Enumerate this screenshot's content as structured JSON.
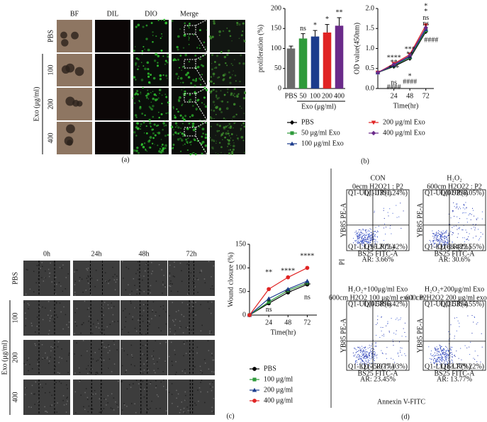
{
  "figure": {
    "panel_labels": [
      "(a)",
      "(b)",
      "(c)",
      "(d)"
    ]
  },
  "panel_a": {
    "columns": [
      "BF",
      "DIL",
      "DIO",
      "Merge"
    ],
    "rows": [
      "PBS",
      "100",
      "200",
      "400"
    ],
    "group_label": "Exo (μg/ml)"
  },
  "panel_c": {
    "columns": [
      "0h",
      "24h",
      "48h",
      "72h"
    ],
    "rows": [
      "PBS",
      "100",
      "200",
      "400"
    ],
    "group_label": "Exo (μg/ml)"
  },
  "chart_data": [
    {
      "type": "bar",
      "ylabel": "proliferation (%)",
      "xlabel": "Exo (μg/ml)",
      "categories": [
        "PBS",
        "50",
        "100",
        "200",
        "400"
      ],
      "values": [
        100,
        125,
        130,
        140,
        157
      ],
      "errors": [
        6,
        12,
        15,
        20,
        20
      ],
      "colors": [
        "#6b6b6b",
        "#2e9a3a",
        "#1c3c8c",
        "#e02424",
        "#6a2a8a"
      ],
      "significance": [
        null,
        "ns",
        "*",
        "*",
        "**"
      ],
      "ylim": [
        0,
        200
      ],
      "yticks": [
        0,
        50,
        100,
        150,
        200
      ]
    },
    {
      "type": "line",
      "ylabel": "OD value(450nm)",
      "xlabel": "Time(hr)",
      "x": [
        0,
        24,
        48,
        72
      ],
      "xlim": [
        0,
        84
      ],
      "xticks": [
        24,
        48,
        72
      ],
      "ylim": [
        0,
        2
      ],
      "yticks": [
        {
          "value": 0,
          "label": "0.0"
        },
        {
          "value": 0.5,
          "label": "0.5"
        },
        {
          "value": 1,
          "label": "1.0"
        },
        {
          "value": 1.5,
          "label": "1.5"
        },
        {
          "value": 2,
          "label": "2.0"
        }
      ],
      "series": [
        {
          "name": "PBS",
          "color": "#000000",
          "marker": "diamond",
          "values": [
            0.4,
            0.55,
            0.75,
            1.42
          ]
        },
        {
          "name": "50 μg/ml Exo",
          "color": "#2e9a3a",
          "marker": "square",
          "values": [
            0.4,
            0.57,
            0.78,
            1.45
          ]
        },
        {
          "name": "100 μg/ml Exo",
          "color": "#1c3c8c",
          "marker": "triangle",
          "values": [
            0.4,
            0.58,
            0.8,
            1.48
          ]
        },
        {
          "name": "200 μg/ml Exo",
          "color": "#e02424",
          "marker": "triangle-down",
          "values": [
            0.4,
            0.62,
            0.85,
            1.58
          ]
        },
        {
          "name": "400 μg/ml Exo",
          "color": "#6a2a8a",
          "marker": "diamond",
          "values": [
            0.4,
            0.6,
            0.82,
            1.52
          ]
        }
      ],
      "annotations": [
        {
          "text": "****",
          "x": 24,
          "y": 0.76,
          "color": "#6a2a8a"
        },
        {
          "text": "**",
          "x": 24,
          "y": 0.64,
          "color": "#e02424"
        },
        {
          "text": "***",
          "x": 24,
          "y": 0.5,
          "color": "#1c3c8c"
        },
        {
          "text": "ns",
          "x": 24,
          "y": 0.14,
          "color": "#2e9a3a"
        },
        {
          "text": "####",
          "x": 24,
          "y": 0.02,
          "color": "#1c3c8c"
        },
        {
          "text": "***",
          "x": 48,
          "y": 0.97,
          "color": "#6a2a8a"
        },
        {
          "text": "**",
          "x": 48,
          "y": 0.85,
          "color": "#e02424"
        },
        {
          "text": "*",
          "x": 48,
          "y": 0.73,
          "color": "#1c3c8c"
        },
        {
          "text": "*",
          "x": 48,
          "y": 0.3,
          "color": "#2e9a3a"
        },
        {
          "text": "####",
          "x": 48,
          "y": 0.16,
          "color": "#1c3c8c"
        },
        {
          "text": "*",
          "x": 72,
          "y": 2.05,
          "color": "#6a2a8a"
        },
        {
          "text": "*",
          "x": 72,
          "y": 1.92,
          "color": "#e02424"
        },
        {
          "text": "ns",
          "x": 72,
          "y": 1.76,
          "color": "#1c3c8c"
        },
        {
          "text": "ns",
          "x": 72,
          "y": 1.62,
          "color": "#2e9a3a"
        },
        {
          "text": "####",
          "x": 80,
          "y": 1.2,
          "color": "#000000"
        }
      ]
    },
    {
      "type": "line",
      "ylabel": "Wound closure (%)",
      "xlabel": "Time(hr)",
      "x": [
        0,
        24,
        48,
        72
      ],
      "xlim": [
        0,
        84
      ],
      "xticks": [
        24,
        48,
        72
      ],
      "ylim": [
        0,
        150
      ],
      "yticks": [
        0,
        50,
        100,
        150
      ],
      "series": [
        {
          "name": "PBS",
          "color": "#000000",
          "marker": "circle",
          "values": [
            0,
            25,
            48,
            65
          ]
        },
        {
          "name": "100 μg/ml",
          "color": "#2e9a3a",
          "marker": "square",
          "values": [
            0,
            28,
            52,
            68
          ]
        },
        {
          "name": "200 μg/ml",
          "color": "#1c3c8c",
          "marker": "triangle",
          "values": [
            0,
            35,
            55,
            72
          ]
        },
        {
          "name": "400 μg/ml",
          "color": "#e02424",
          "marker": "circle",
          "values": [
            0,
            55,
            80,
            100
          ]
        }
      ],
      "annotations": [
        {
          "text": "**",
          "x": 24,
          "y": 90,
          "color": "#e02424"
        },
        {
          "text": "*",
          "x": 24,
          "y": 27,
          "color": "#1c3c8c"
        },
        {
          "text": "ns",
          "x": 24,
          "y": 11,
          "color": "#2e9a3a"
        },
        {
          "text": "****",
          "x": 48,
          "y": 93,
          "color": "#e02424"
        },
        {
          "text": "**",
          "x": 48,
          "y": 46,
          "color": "#1c3c8c"
        },
        {
          "text": "****",
          "x": 72,
          "y": 124,
          "color": "#e02424"
        },
        {
          "text": "**",
          "x": 72,
          "y": 62,
          "color": "#1c3c8c"
        },
        {
          "text": "ns",
          "x": 72,
          "y": 37,
          "color": "#2e9a3a"
        }
      ]
    }
  ],
  "panel_d": {
    "y_label": "PI",
    "x_label": "Annexin V-FITC",
    "plots": [
      {
        "title": "CON",
        "subtitle": "0ecm H2O21 : P2",
        "ar": "AR: 3.66%",
        "axis_x": "BS25 FITC-A",
        "axis_y": "YB85 PE-A",
        "quadrants": [
          "Q1-UL(1.13%)",
          "Q1-UR(1.24%)",
          "Q1-LL(95.20%)",
          "Q1-LR(2.42%)"
        ]
      },
      {
        "title": "H₂O₂",
        "subtitle": "600cm H2O22 : P2",
        "ar": "AR: 30.6%",
        "axis_x": "BS25 FITC-A",
        "axis_y": "YB85 PE-A",
        "quadrants": [
          "Q1-UL(0.92%)",
          "Q1-UR(8.05%)",
          "Q1-LL(68.48%)",
          "Q1-LR(22.55%)"
        ]
      },
      {
        "title": "H₂O₂+100μg/ml Exo",
        "subtitle": "600cm H2O2 100 μg/ml exo1 : P2",
        "ar": "AR: 23.45%",
        "axis_x": "BS25 FITC-A",
        "axis_y": "YB85 PE-A",
        "quadrants": [
          "Q1-UL(0.58%)",
          "Q1-UR(6.42%)",
          "Q1-LL(75.97%)",
          "Q1-LR(17.03%)"
        ]
      },
      {
        "title": "H₂O₂+200μg/ml Exo",
        "subtitle": "600cm H2O2 200 μg/ml exo1 : P2",
        "ar": "AR: 13.77%",
        "axis_x": "BS25 FITC-A",
        "axis_y": "YB85 PE-A",
        "quadrants": [
          "Q1-UL(2.53%)",
          "Q1-UR(4.55%)",
          "Q1-LL(83.77%)",
          "Q1-LR(9.22%)"
        ]
      }
    ]
  }
}
